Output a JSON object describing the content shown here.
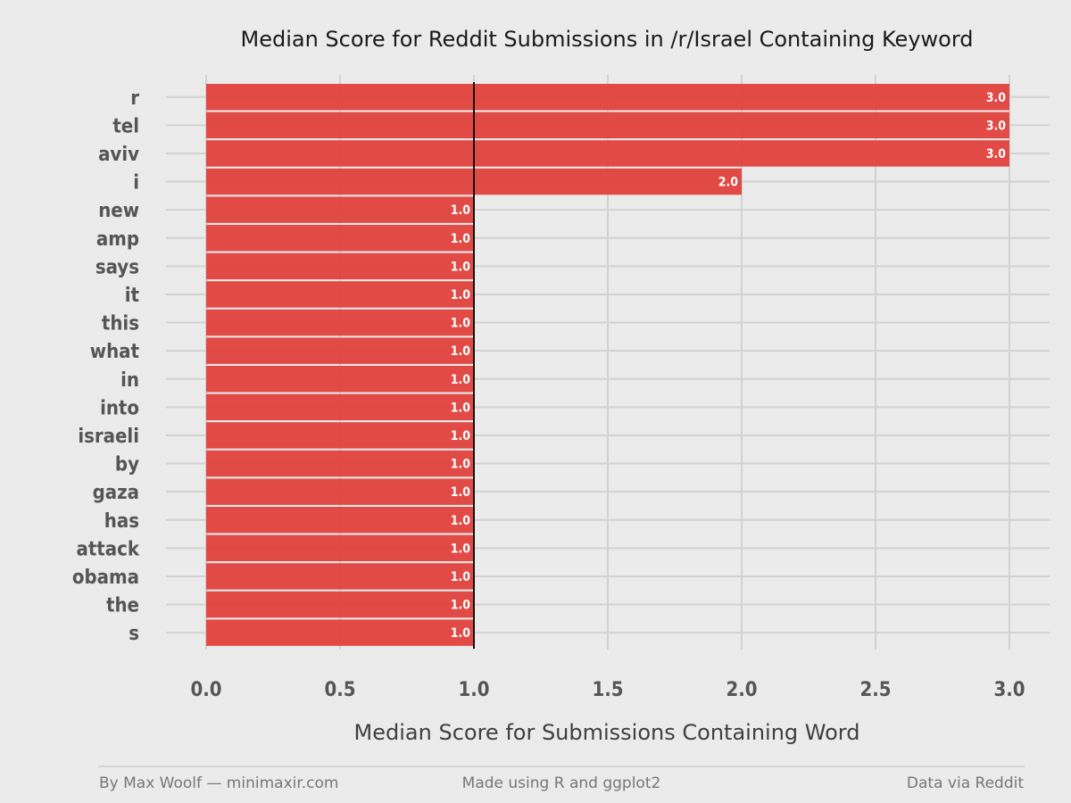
{
  "chart_data": {
    "type": "bar",
    "orientation": "horizontal",
    "title": "Median Score for Reddit Submissions in /r/Israel Containing Keyword",
    "xlabel": "Median Score for Submissions Containing Word",
    "ylabel": "",
    "xlim": [
      0,
      3
    ],
    "xticks": [
      "0.0",
      "0.5",
      "1.0",
      "1.5",
      "2.0",
      "2.5",
      "3.0"
    ],
    "reference_line": 1.0,
    "grid": true,
    "bar_color": "#e0413c",
    "categories": [
      "r",
      "tel",
      "aviv",
      "i",
      "new",
      "amp",
      "says",
      "it",
      "this",
      "what",
      "in",
      "into",
      "israeli",
      "by",
      "gaza",
      "has",
      "attack",
      "obama",
      "the",
      "s"
    ],
    "values": [
      3.0,
      3.0,
      3.0,
      2.0,
      1.0,
      1.0,
      1.0,
      1.0,
      1.0,
      1.0,
      1.0,
      1.0,
      1.0,
      1.0,
      1.0,
      1.0,
      1.0,
      1.0,
      1.0,
      1.0
    ],
    "labels": [
      "3.0",
      "3.0",
      "3.0",
      "2.0",
      "1.0",
      "1.0",
      "1.0",
      "1.0",
      "1.0",
      "1.0",
      "1.0",
      "1.0",
      "1.0",
      "1.0",
      "1.0",
      "1.0",
      "1.0",
      "1.0",
      "1.0",
      "1.0"
    ]
  },
  "footer": {
    "left": "By Max Woolf — minimaxir.com",
    "center": "Made using R and ggplot2",
    "right": "Data via Reddit"
  }
}
